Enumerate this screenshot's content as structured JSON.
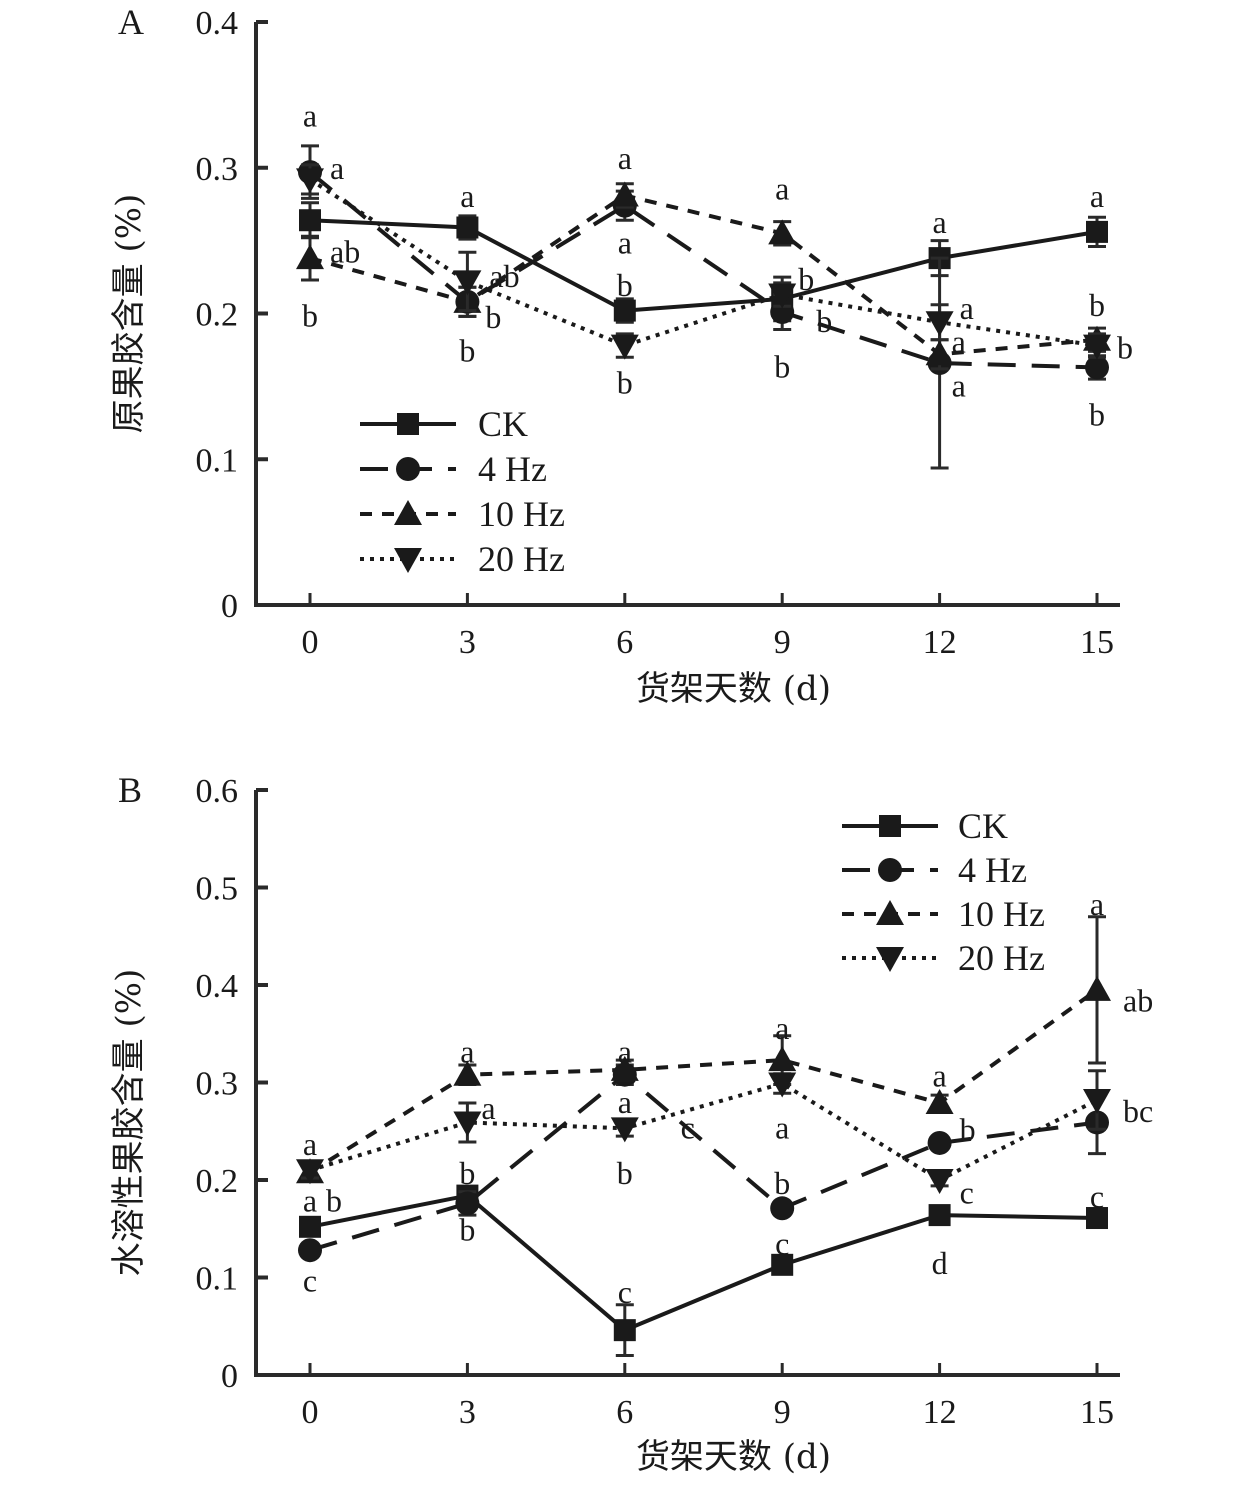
{
  "chart_data": [
    {
      "type": "line",
      "panel_label": "A",
      "title": "",
      "xlabel": "货架天数 (d)",
      "ylabel": "原果胶含量 (%)",
      "x": [
        0,
        3,
        6,
        9,
        12,
        15
      ],
      "x_tick_labels": [
        "0",
        "3",
        "6",
        "9",
        "12",
        "15"
      ],
      "ylim": [
        0,
        0.4
      ],
      "y_ticks": [
        0,
        0.1,
        0.2,
        0.3,
        0.4
      ],
      "y_tick_labels": [
        "0",
        "0.1",
        "0.2",
        "0.3",
        "0.4"
      ],
      "grid": false,
      "legend_position": "bottom-left",
      "series": [
        {
          "name": "CK",
          "marker": "square",
          "line": "solid",
          "values": [
            0.264,
            0.259,
            0.202,
            0.21,
            0.238,
            0.256
          ],
          "errors": [
            0.012,
            0.008,
            0.008,
            0.015,
            0.012,
            0.01
          ]
        },
        {
          "name": "4 Hz",
          "marker": "circle",
          "line": "long-dash",
          "values": [
            0.297,
            0.208,
            0.274,
            0.201,
            0.166,
            0.163
          ],
          "errors": [
            0.018,
            0.01,
            0.01,
            0.012,
            0.072,
            0.008
          ]
        },
        {
          "name": "10 Hz",
          "marker": "triangle-up",
          "line": "dash",
          "values": [
            0.238,
            0.208,
            0.281,
            0.255,
            0.172,
            0.182
          ],
          "errors": [
            0.015,
            0.01,
            0.008,
            0.008,
            0.01,
            0.008
          ]
        },
        {
          "name": "20 Hz",
          "marker": "triangle-down",
          "line": "dotted",
          "values": [
            0.292,
            0.222,
            0.178,
            0.213,
            0.194,
            0.178
          ],
          "errors": [
            0.01,
            0.02,
            0.008,
            0.008,
            0.012,
            0.008
          ]
        }
      ],
      "annotations": [
        {
          "x": 0,
          "y": 0.335,
          "text": "a",
          "dx": 0
        },
        {
          "x": 0,
          "y": 0.299,
          "text": "a",
          "dx": 34
        },
        {
          "x": 0,
          "y": 0.242,
          "text": "ab",
          "dx": 34
        },
        {
          "x": 0,
          "y": 0.198,
          "text": "b",
          "dx": 0
        },
        {
          "x": 3,
          "y": 0.28,
          "text": "a",
          "dx": 0
        },
        {
          "x": 3,
          "y": 0.225,
          "text": "ab",
          "dx": 36
        },
        {
          "x": 3,
          "y": 0.197,
          "text": "b",
          "dx": 32
        },
        {
          "x": 3,
          "y": 0.174,
          "text": "b",
          "dx": 0
        },
        {
          "x": 6,
          "y": 0.306,
          "text": "a",
          "dx": 0
        },
        {
          "x": 6,
          "y": 0.248,
          "text": "a",
          "dx": 0
        },
        {
          "x": 6,
          "y": 0.219,
          "text": "b",
          "dx": 0
        },
        {
          "x": 6,
          "y": 0.152,
          "text": "b",
          "dx": 0
        },
        {
          "x": 9,
          "y": 0.285,
          "text": "a",
          "dx": 0
        },
        {
          "x": 9,
          "y": 0.223,
          "text": "b",
          "dx": 30
        },
        {
          "x": 9,
          "y": 0.194,
          "text": "b",
          "dx": 48
        },
        {
          "x": 9,
          "y": 0.163,
          "text": "b",
          "dx": 0
        },
        {
          "x": 12,
          "y": 0.262,
          "text": "a",
          "dx": 0
        },
        {
          "x": 12,
          "y": 0.203,
          "text": "a",
          "dx": 34
        },
        {
          "x": 12,
          "y": 0.18,
          "text": "a",
          "dx": 26
        },
        {
          "x": 12,
          "y": 0.15,
          "text": "a",
          "dx": 26
        },
        {
          "x": 15,
          "y": 0.28,
          "text": "a",
          "dx": 0
        },
        {
          "x": 15,
          "y": 0.205,
          "text": "b",
          "dx": 0
        },
        {
          "x": 15,
          "y": 0.176,
          "text": "b",
          "dx": 34
        },
        {
          "x": 15,
          "y": 0.13,
          "text": "b",
          "dx": 0
        }
      ]
    },
    {
      "type": "line",
      "panel_label": "B",
      "title": "",
      "xlabel": "货架天数 (d)",
      "ylabel": "水溶性果胶含量 (%)",
      "x": [
        0,
        3,
        6,
        9,
        12,
        15
      ],
      "x_tick_labels": [
        "0",
        "3",
        "6",
        "9",
        "12",
        "15"
      ],
      "ylim": [
        0,
        0.6
      ],
      "y_ticks": [
        0,
        0.1,
        0.2,
        0.3,
        0.4,
        0.5,
        0.6
      ],
      "y_tick_labels": [
        "0",
        "0.1",
        "0.2",
        "0.3",
        "0.4",
        "0.5",
        "0.6"
      ],
      "grid": false,
      "legend_position": "top-right",
      "series": [
        {
          "name": "CK",
          "marker": "square",
          "line": "solid",
          "values": [
            0.152,
            0.184,
            0.046,
            0.113,
            0.164,
            0.161
          ],
          "errors": [
            0.008,
            0.008,
            0.026,
            0.006,
            0.006,
            0.006
          ]
        },
        {
          "name": "4 Hz",
          "marker": "circle",
          "line": "long-dash",
          "values": [
            0.128,
            0.176,
            0.308,
            0.171,
            0.238,
            0.259
          ],
          "errors": [
            0.006,
            0.012,
            0.01,
            0.006,
            0.006,
            0.032
          ]
        },
        {
          "name": "10 Hz",
          "marker": "triangle-up",
          "line": "dash",
          "values": [
            0.208,
            0.308,
            0.313,
            0.323,
            0.279,
            0.395
          ],
          "errors": [
            0.008,
            0.01,
            0.01,
            0.025,
            0.008,
            0.075
          ]
        },
        {
          "name": "20 Hz",
          "marker": "triangle-down",
          "line": "dotted",
          "values": [
            0.21,
            0.259,
            0.253,
            0.299,
            0.2,
            0.282
          ],
          "errors": [
            0.008,
            0.02,
            0.008,
            0.01,
            0.006,
            0.03
          ]
        }
      ],
      "annotations": [
        {
          "x": 0,
          "y": 0.236,
          "text": "a",
          "dx": 0
        },
        {
          "x": 0,
          "y": 0.178,
          "text": "a",
          "dx": 0
        },
        {
          "x": 0,
          "y": 0.178,
          "text": "b",
          "dx": 30
        },
        {
          "x": 0,
          "y": 0.096,
          "text": "c",
          "dx": 0
        },
        {
          "x": 3,
          "y": 0.331,
          "text": "a",
          "dx": 0
        },
        {
          "x": 3,
          "y": 0.273,
          "text": "a",
          "dx": 28
        },
        {
          "x": 3,
          "y": 0.206,
          "text": "b",
          "dx": 0
        },
        {
          "x": 3,
          "y": 0.148,
          "text": "b",
          "dx": 0
        },
        {
          "x": 6,
          "y": 0.331,
          "text": "a",
          "dx": 0
        },
        {
          "x": 6,
          "y": 0.279,
          "text": "a",
          "dx": 0
        },
        {
          "x": 6,
          "y": 0.206,
          "text": "b",
          "dx": 0
        },
        {
          "x": 6,
          "y": 0.084,
          "text": "c",
          "dx": 0
        },
        {
          "x": 7.2,
          "y": 0.253,
          "text": "c",
          "dx": 0
        },
        {
          "x": 9,
          "y": 0.355,
          "text": "a",
          "dx": 0
        },
        {
          "x": 9,
          "y": 0.253,
          "text": "a",
          "dx": 0
        },
        {
          "x": 9,
          "y": 0.196,
          "text": "b",
          "dx": 0
        },
        {
          "x": 9,
          "y": 0.134,
          "text": "c",
          "dx": 0
        },
        {
          "x": 12,
          "y": 0.306,
          "text": "a",
          "dx": 0
        },
        {
          "x": 12,
          "y": 0.251,
          "text": "b",
          "dx": 34
        },
        {
          "x": 12,
          "y": 0.186,
          "text": "c",
          "dx": 34
        },
        {
          "x": 12,
          "y": 0.114,
          "text": "d",
          "dx": 0
        },
        {
          "x": 15,
          "y": 0.482,
          "text": "a",
          "dx": 0
        },
        {
          "x": 15,
          "y": 0.383,
          "text": "ab",
          "dx": 40
        },
        {
          "x": 15,
          "y": 0.27,
          "text": "bc",
          "dx": 40
        },
        {
          "x": 15,
          "y": 0.182,
          "text": "c",
          "dx": 0
        }
      ]
    }
  ]
}
